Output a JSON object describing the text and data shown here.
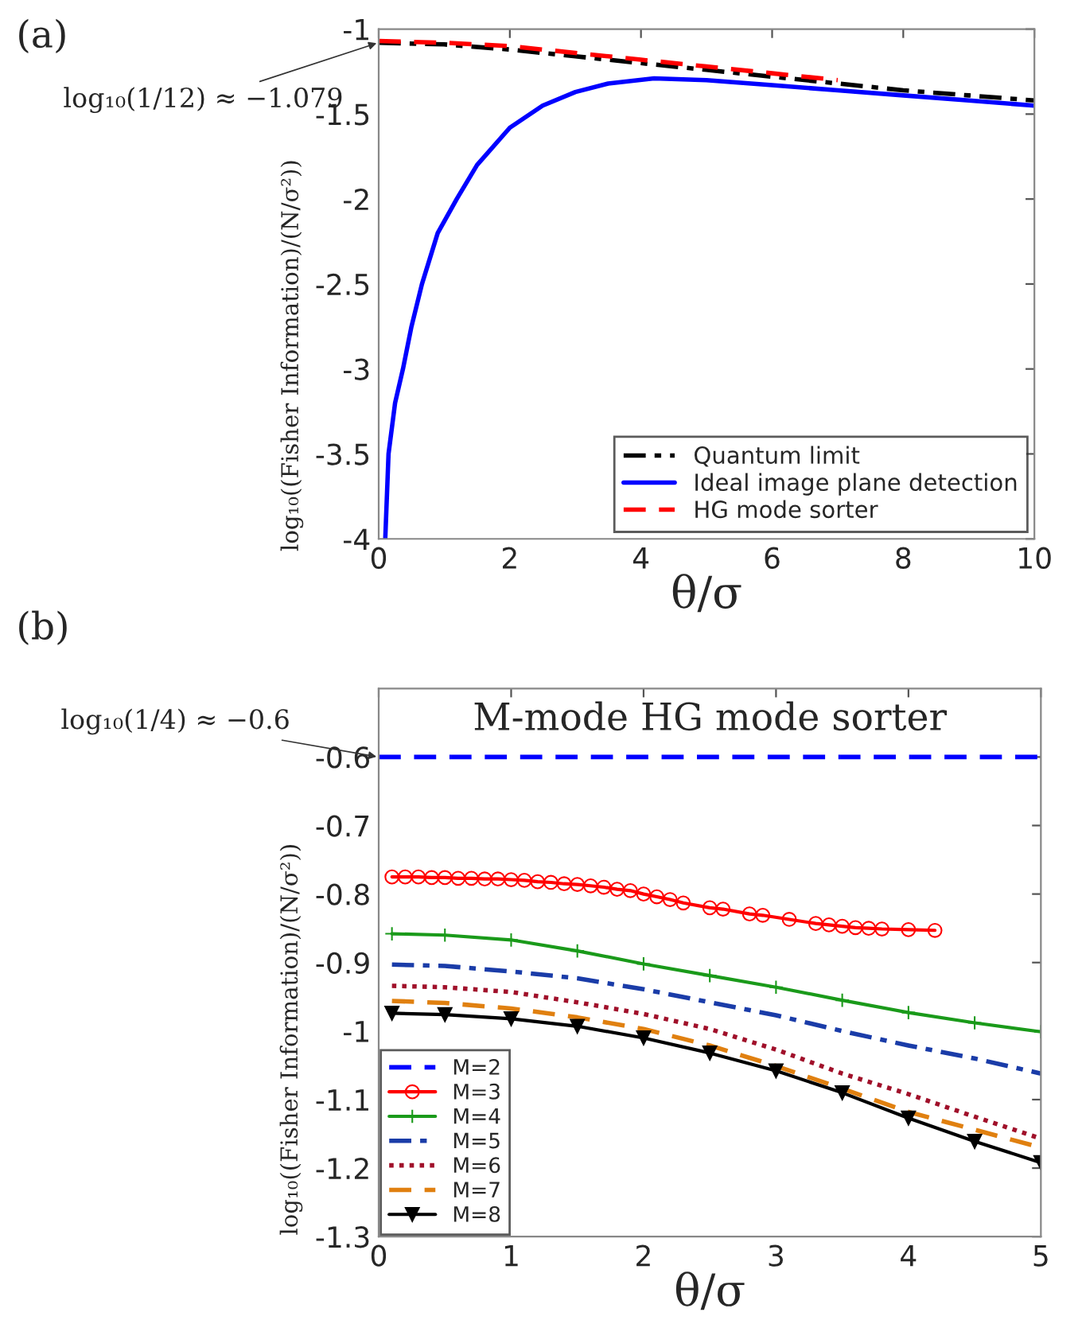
{
  "chart_data": [
    {
      "type": "line",
      "xlabel": "θ/σ",
      "ylabel": "log₁₀((Fisher Information)/(N/σ²))",
      "xlim": [
        0,
        10
      ],
      "ylim": [
        -4,
        -1
      ],
      "xticks": [
        0,
        2,
        4,
        6,
        8,
        10
      ],
      "yticks": [
        -4,
        -3.5,
        -3,
        -2.5,
        -2,
        -1.5,
        -1
      ],
      "legend": "bottom right",
      "grid": false,
      "annotations": [
        "(a)",
        {
          "text": "log₁₀(1/12) ≈ −1.079",
          "x": 0,
          "y": -1.079
        }
      ],
      "series": [
        {
          "name": "Quantum limit",
          "color": "#000000",
          "line_style": "dashdot",
          "x": [
            0,
            1,
            2,
            3,
            4,
            5,
            6,
            7,
            8,
            9,
            10
          ],
          "values": [
            -1.08,
            -1.09,
            -1.12,
            -1.16,
            -1.2,
            -1.24,
            -1.28,
            -1.32,
            -1.36,
            -1.39,
            -1.42
          ]
        },
        {
          "name": "Ideal image plane detection",
          "color": "#0000ff",
          "line_style": "solid",
          "x": [
            0.1,
            0.15,
            0.25,
            0.37,
            0.5,
            0.66,
            0.9,
            1.19,
            1.5,
            2,
            2.5,
            3,
            3.5,
            4.2,
            5,
            6,
            7,
            8,
            9,
            10
          ],
          "values": [
            -4,
            -3.5,
            -3.2,
            -3,
            -2.75,
            -2.5,
            -2.2,
            -2,
            -1.8,
            -1.58,
            -1.45,
            -1.37,
            -1.32,
            -1.29,
            -1.3,
            -1.33,
            -1.36,
            -1.39,
            -1.42,
            -1.45
          ]
        },
        {
          "name": "HG mode sorter",
          "color": "#ff0000",
          "line_style": "dashed",
          "x": [
            0,
            1,
            2,
            3,
            4,
            5,
            6,
            7
          ],
          "values": [
            -1.07,
            -1.08,
            -1.1,
            -1.14,
            -1.18,
            -1.22,
            -1.26,
            -1.3
          ]
        }
      ]
    },
    {
      "type": "line",
      "title": "M-mode HG mode sorter",
      "xlabel": "θ/σ",
      "ylabel": "log₁₀((Fisher Information)/(N/σ²))",
      "xlim": [
        0,
        5
      ],
      "ylim": [
        -1.3,
        -0.5
      ],
      "xticks": [
        0,
        1,
        2,
        3,
        4,
        5
      ],
      "yticks": [
        -1.3,
        -1.2,
        -1.1,
        -1,
        -0.9,
        -0.8,
        -0.7,
        -0.6
      ],
      "legend": "bottom left",
      "grid": false,
      "annotations": [
        "(b)",
        {
          "text": "log₁₀(1/4) ≈ −0.6",
          "x": 0,
          "y": -0.6
        }
      ],
      "series": [
        {
          "name": "M=2",
          "color": "#0000ff",
          "line_style": "dashed",
          "marker": "none",
          "x": [
            0,
            5
          ],
          "values": [
            -0.6,
            -0.6
          ]
        },
        {
          "name": "M=3",
          "color": "#ff0000",
          "line_style": "solid",
          "marker": "circle",
          "x": [
            0.1,
            0.2,
            0.3,
            0.4,
            0.5,
            0.6,
            0.7,
            0.8,
            0.9,
            1.0,
            1.1,
            1.2,
            1.3,
            1.4,
            1.5,
            1.6,
            1.7,
            1.8,
            1.9,
            2.0,
            2.1,
            2.2,
            2.3,
            2.5,
            2.6,
            2.8,
            2.9,
            3.1,
            3.3,
            3.4,
            3.5,
            3.6,
            3.7,
            3.8,
            4.0,
            4.2
          ],
          "values": [
            -0.775,
            -0.775,
            -0.775,
            -0.776,
            -0.776,
            -0.777,
            -0.777,
            -0.778,
            -0.778,
            -0.779,
            -0.78,
            -0.782,
            -0.783,
            -0.785,
            -0.786,
            -0.788,
            -0.79,
            -0.793,
            -0.795,
            -0.8,
            -0.804,
            -0.808,
            -0.813,
            -0.82,
            -0.822,
            -0.829,
            -0.831,
            -0.837,
            -0.843,
            -0.845,
            -0.847,
            -0.849,
            -0.85,
            -0.851,
            -0.852,
            -0.853
          ]
        },
        {
          "name": "M=4",
          "color": "#1a9a1a",
          "line_style": "solid",
          "marker": "cross",
          "x": [
            0.1,
            0.5,
            1,
            1.5,
            2,
            2.5,
            3,
            3.5,
            4,
            4.5,
            5
          ],
          "values": [
            -0.858,
            -0.86,
            -0.867,
            -0.883,
            -0.902,
            -0.919,
            -0.936,
            -0.955,
            -0.973,
            -0.988,
            -1.001
          ]
        },
        {
          "name": "M=5",
          "color": "#1a3ca8",
          "line_style": "dashdot",
          "marker": "none",
          "x": [
            0.1,
            0.5,
            1,
            1.5,
            2,
            2.5,
            3,
            3.5,
            4,
            4.5,
            5
          ],
          "values": [
            -0.903,
            -0.905,
            -0.913,
            -0.923,
            -0.939,
            -0.958,
            -0.977,
            -1.0,
            -1.021,
            -1.04,
            -1.062
          ]
        },
        {
          "name": "M=6",
          "color": "#a0102a",
          "line_style": "dotted",
          "marker": "none",
          "x": [
            0.1,
            0.5,
            1,
            1.5,
            2,
            2.5,
            3,
            3.5,
            4,
            4.5,
            5
          ],
          "values": [
            -0.934,
            -0.936,
            -0.943,
            -0.958,
            -0.975,
            -0.997,
            -1.027,
            -1.062,
            -1.092,
            -1.125,
            -1.157
          ]
        },
        {
          "name": "M=7",
          "color": "#e08010",
          "line_style": "dashed",
          "marker": "none",
          "x": [
            0.1,
            0.5,
            1,
            1.5,
            2,
            2.5,
            3,
            3.5,
            4,
            4.5,
            5
          ],
          "values": [
            -0.956,
            -0.959,
            -0.967,
            -0.98,
            -0.997,
            -1.021,
            -1.051,
            -1.084,
            -1.118,
            -1.144,
            -1.17
          ]
        },
        {
          "name": "M=8",
          "color": "#000000",
          "line_style": "solid",
          "marker": "triangle",
          "x": [
            0.1,
            0.5,
            1,
            1.5,
            2,
            2.5,
            3,
            3.5,
            4,
            4.5,
            5
          ],
          "values": [
            -0.974,
            -0.976,
            -0.982,
            -0.993,
            -1.01,
            -1.032,
            -1.058,
            -1.09,
            -1.127,
            -1.161,
            -1.192
          ]
        }
      ]
    }
  ]
}
